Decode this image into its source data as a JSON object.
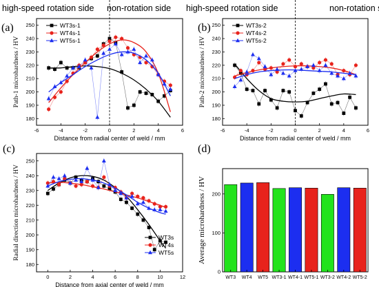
{
  "chart_data": [
    {
      "panel": "(a)",
      "type": "line",
      "headers": [
        "high-speed rotation side",
        "non-rotation side"
      ],
      "xlabel": "Distance from radial center of weld / mm",
      "ylabel": "Path-1 microhardness / HV",
      "xlim": [
        -6,
        6
      ],
      "ylim": [
        175,
        255
      ],
      "xticks": [
        -6,
        -4,
        -2,
        0,
        2,
        4,
        6
      ],
      "yticks": [
        180,
        190,
        200,
        210,
        220,
        230,
        240,
        250
      ],
      "divider_x": 0,
      "legend_position": "top-left",
      "series": [
        {
          "name": "WT3s-1",
          "color": "#000000",
          "marker": "square",
          "x": [
            -5,
            -4.5,
            -4,
            -3.5,
            -3,
            -2.5,
            -2,
            -1.5,
            -1,
            -0.5,
            0,
            0.5,
            1,
            1.5,
            2,
            2.5,
            3,
            3.5,
            4,
            4.5,
            5
          ],
          "y": [
            218,
            217,
            222,
            218,
            218,
            218,
            222,
            225,
            227,
            236,
            240,
            237,
            215,
            188,
            190,
            200,
            199,
            198,
            193,
            197,
            201
          ],
          "fit": [
            [
              -5,
              218
            ],
            [
              -4,
              218
            ],
            [
              -3,
              219
            ],
            [
              -2,
              219.5
            ],
            [
              -1,
              219
            ],
            [
              0,
              217.5
            ],
            [
              1,
              214
            ],
            [
              2,
              209
            ],
            [
              3,
              202
            ],
            [
              4,
              193
            ],
            [
              5,
              181
            ]
          ]
        },
        {
          "name": "WT4s-1",
          "color": "#e8231c",
          "marker": "circle",
          "x": [
            -5,
            -4.5,
            -4,
            -3.5,
            -3,
            -2.5,
            -2,
            -1.5,
            -1,
            -0.5,
            0,
            0.5,
            1,
            1.5,
            2,
            2.5,
            3,
            3.5,
            4,
            4.5,
            5
          ],
          "y": [
            187,
            196,
            200,
            208,
            214,
            220,
            222,
            226,
            232,
            235,
            238,
            241,
            240,
            233,
            228,
            226,
            222,
            219,
            213,
            208,
            205
          ],
          "fit": [
            [
              -5,
              192
            ],
            [
              -4,
              203
            ],
            [
              -3,
              213
            ],
            [
              -2,
              222
            ],
            [
              -1,
              230
            ],
            [
              0,
              236
            ],
            [
              1,
              239
            ],
            [
              2,
              237
            ],
            [
              3,
              230
            ],
            [
              4,
              214
            ],
            [
              5,
              185
            ]
          ]
        },
        {
          "name": "WT5s-1",
          "color": "#1c2ef0",
          "marker": "triangle",
          "x": [
            -5,
            -4.5,
            -4,
            -3.5,
            -3,
            -2.5,
            -2,
            -1.5,
            -1,
            -0.5,
            0,
            0.5,
            1,
            1.5,
            2,
            2.5,
            3,
            3.5,
            4,
            4.5,
            5
          ],
          "y": [
            195,
            204,
            207,
            212,
            218,
            219,
            224,
            218,
            181,
            229,
            232,
            236,
            228,
            230,
            232,
            222,
            227,
            224,
            213,
            206,
            202
          ],
          "fit": [
            [
              -5,
              200
            ],
            [
              -4,
              207
            ],
            [
              -3,
              213
            ],
            [
              -2,
              219
            ],
            [
              -1,
              224
            ],
            [
              0,
              228
            ],
            [
              1,
              230
            ],
            [
              2,
              229
            ],
            [
              3,
              224
            ],
            [
              4,
              214
            ],
            [
              5,
              197
            ]
          ]
        }
      ]
    },
    {
      "panel": "(b)",
      "type": "line",
      "headers": [
        "high-speed rotation side",
        "non-rotation side"
      ],
      "xlabel": "Distance from radial center of weld / mm",
      "ylabel": "Path-2 microhardness / HV",
      "xlim": [
        -6,
        6
      ],
      "ylim": [
        175,
        255
      ],
      "xticks": [
        -6,
        -4,
        -2,
        0,
        2,
        4,
        6
      ],
      "yticks": [
        180,
        190,
        200,
        210,
        220,
        230,
        240,
        250
      ],
      "divider_x": 0,
      "legend_position": "top-left",
      "series": [
        {
          "name": "WT3s-2",
          "color": "#000000",
          "marker": "square",
          "x": [
            -5,
            -4.5,
            -4,
            -3.5,
            -3,
            -2.5,
            -2,
            -1.5,
            -1,
            -0.5,
            0,
            0.5,
            1,
            1.5,
            2,
            2.5,
            3,
            3.5,
            4,
            4.5,
            5
          ],
          "y": [
            220,
            214,
            202,
            201,
            191,
            201,
            194,
            188,
            201,
            200,
            186,
            182,
            192,
            199,
            202,
            206,
            191,
            192,
            184,
            196,
            188
          ],
          "fit": [
            [
              -5,
              221
            ],
            [
              -4,
              210
            ],
            [
              -3,
              201
            ],
            [
              -2,
              195
            ],
            [
              -1,
              193
            ],
            [
              0,
              192.5
            ],
            [
              1,
              193
            ],
            [
              2,
              195
            ],
            [
              3,
              197
            ],
            [
              4,
              198.5
            ],
            [
              5,
              198
            ]
          ]
        },
        {
          "name": "WT4s-2",
          "color": "#e8231c",
          "marker": "circle",
          "x": [
            -5,
            -4.5,
            -4,
            -3.5,
            -3,
            -2.5,
            -2,
            -1.5,
            -1,
            -0.5,
            0,
            0.5,
            1,
            1.5,
            2,
            2.5,
            3,
            3.5,
            4,
            4.5,
            5
          ],
          "y": [
            211,
            216,
            213,
            216,
            222,
            217,
            218,
            215,
            221,
            224,
            219,
            221,
            219,
            218,
            222,
            224,
            221,
            213,
            216,
            213,
            220
          ],
          "fit": [
            [
              -5,
              212
            ],
            [
              -4,
              214.5
            ],
            [
              -3,
              216.5
            ],
            [
              -2,
              218
            ],
            [
              -1,
              219
            ],
            [
              0,
              219.5
            ],
            [
              1,
              219.5
            ],
            [
              2,
              219
            ],
            [
              3,
              218
            ],
            [
              4,
              216
            ],
            [
              5,
              213
            ]
          ]
        },
        {
          "name": "WT5s-2",
          "color": "#1c2ef0",
          "marker": "triangle",
          "x": [
            -5,
            -4.5,
            -4,
            -3.5,
            -3,
            -2.5,
            -2,
            -1.5,
            -1,
            -0.5,
            0,
            0.5,
            1,
            1.5,
            2,
            2.5,
            3,
            3.5,
            4,
            4.5,
            5
          ],
          "y": [
            204,
            209,
            215,
            228,
            225,
            219,
            213,
            217,
            214,
            212,
            216,
            217,
            219,
            220,
            216,
            220,
            214,
            212,
            210,
            214,
            212
          ],
          "fit": [
            [
              -5,
              210
            ],
            [
              -4,
              213
            ],
            [
              -3,
              215
            ],
            [
              -2,
              216
            ],
            [
              -1,
              216.5
            ],
            [
              0,
              216.5
            ],
            [
              1,
              216
            ],
            [
              2,
              215.5
            ],
            [
              3,
              215
            ],
            [
              4,
              214
            ],
            [
              5,
              213
            ]
          ]
        }
      ]
    },
    {
      "panel": "(c)",
      "type": "line",
      "xlabel": "Distance from axial center of weld / mm",
      "ylabel": "Radial direction microhardness / HV",
      "xlim": [
        -1,
        12
      ],
      "ylim": [
        175,
        255
      ],
      "xticks": [
        0,
        2,
        4,
        6,
        8,
        10,
        12
      ],
      "yticks": [
        180,
        190,
        200,
        210,
        220,
        230,
        240,
        250
      ],
      "legend_position": "bottom-right",
      "series": [
        {
          "name": "WT3s",
          "color": "#000000",
          "marker": "square",
          "x": [
            0,
            0.5,
            1,
            1.5,
            2,
            2.5,
            3,
            3.5,
            4,
            4.5,
            5,
            5.5,
            6,
            6.5,
            7,
            7.5,
            8,
            8.5,
            9,
            9.5,
            10,
            10.5
          ],
          "y": [
            228,
            231,
            234,
            237,
            235,
            239,
            237,
            236,
            238,
            236,
            233,
            231,
            229,
            224,
            222,
            218,
            214,
            210,
            205,
            190,
            196,
            195
          ],
          "fit": [
            [
              0,
              230
            ],
            [
              1,
              235
            ],
            [
              2,
              238.5
            ],
            [
              3,
              240
            ],
            [
              4,
              239.5
            ],
            [
              5,
              237
            ],
            [
              6,
              232
            ],
            [
              7,
              226
            ],
            [
              8,
              217
            ],
            [
              9,
              207
            ],
            [
              10,
              196
            ],
            [
              10.5,
              191
            ]
          ]
        },
        {
          "name": "WT4s",
          "color": "#e8231c",
          "marker": "circle",
          "x": [
            0,
            0.5,
            1,
            1.5,
            2,
            2.5,
            3,
            3.5,
            4,
            4.5,
            5,
            5.5,
            6,
            6.5,
            7,
            7.5,
            8,
            8.5,
            9,
            9.5,
            10,
            10.5
          ],
          "y": [
            235,
            236,
            234,
            238,
            235,
            233,
            234,
            236,
            233,
            232,
            239,
            233,
            232,
            229,
            225,
            228,
            226,
            225,
            223,
            221,
            219,
            219
          ],
          "fit": [
            [
              0,
              235
            ],
            [
              1,
              235.5
            ],
            [
              2,
              235
            ],
            [
              3,
              234
            ],
            [
              4,
              232.5
            ],
            [
              5,
              231
            ],
            [
              6,
              229
            ],
            [
              7,
              227
            ],
            [
              8,
              225
            ],
            [
              9,
              222.5
            ],
            [
              10,
              220
            ],
            [
              10.5,
              218.5
            ]
          ]
        },
        {
          "name": "WT5s",
          "color": "#1c2ef0",
          "marker": "triangle",
          "x": [
            0,
            0.5,
            1,
            1.5,
            2,
            2.5,
            3,
            3.5,
            4,
            4.5,
            5,
            5.5,
            6,
            6.5,
            7,
            7.5,
            8,
            8.5,
            9,
            9.5,
            10,
            10.5
          ],
          "y": [
            233,
            239,
            238,
            240,
            235,
            237,
            236,
            245,
            237,
            232,
            250,
            234,
            230,
            228,
            225,
            226,
            221,
            222,
            218,
            217,
            217,
            216
          ],
          "fit": [
            [
              0,
              233
            ],
            [
              1,
              236
            ],
            [
              2,
              237.5
            ],
            [
              3,
              238
            ],
            [
              4,
              237
            ],
            [
              5,
              235
            ],
            [
              6,
              231.5
            ],
            [
              7,
              227
            ],
            [
              8,
              222
            ],
            [
              9,
              218
            ],
            [
              10,
              215
            ],
            [
              10.5,
              214
            ]
          ]
        }
      ]
    },
    {
      "panel": "(d)",
      "type": "bar",
      "xlabel": "",
      "ylabel": "Average microhardness / HV",
      "ylim": [
        0,
        265
      ],
      "yticks": [
        0,
        100,
        200
      ],
      "categories": [
        "WT3",
        "WT4",
        "WT5",
        "WT3-1",
        "WT4-1",
        "WT5-1",
        "WT3-2",
        "WT4-2",
        "WT5-2"
      ],
      "values": [
        224,
        228,
        229,
        214,
        216,
        215,
        199,
        216,
        215
      ],
      "colors": [
        "#22e31c",
        "#1c2ef0",
        "#e8231c",
        "#22e31c",
        "#1c2ef0",
        "#e8231c",
        "#22e31c",
        "#1c2ef0",
        "#e8231c"
      ]
    }
  ]
}
